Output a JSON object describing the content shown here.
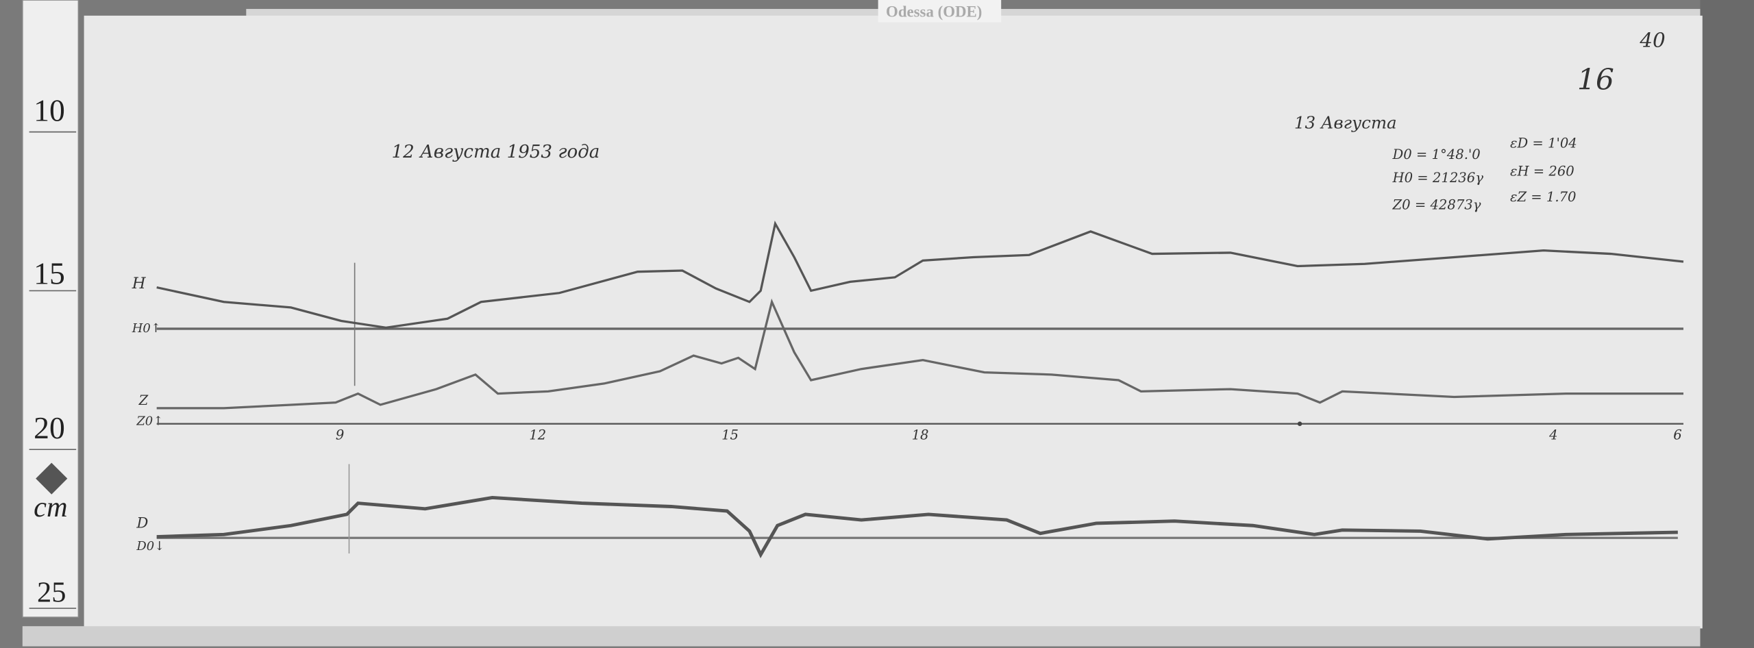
{
  "station_label": "Odessa (ODE)",
  "sheet_number": "40",
  "corner_mark": "16",
  "ruler": {
    "marks": [
      "10",
      "15",
      "20",
      "25"
    ],
    "unit": "cm"
  },
  "title_day1": "12 Августа 1953 года",
  "title_day2": "13 Августа",
  "constants": {
    "D0": "D0 = 1°48.'0",
    "eD": "εD = 1'04",
    "H0": "H0 = 21236γ",
    "eH": "εH = 260",
    "Z0": "Z0 = 42873γ",
    "eZ": "εZ = 1.70"
  },
  "trace_labels": {
    "H": "H",
    "H0": "H0↑",
    "Z": "Z",
    "Z0": "Z0↑",
    "D": "D",
    "D0": "D0↓"
  },
  "hour_labels": [
    "9",
    "12",
    "15",
    "18",
    "4",
    "6"
  ],
  "colors": {
    "paper": "#e9e9e9",
    "trace": "#555555",
    "background": "#7a7a7a"
  }
}
